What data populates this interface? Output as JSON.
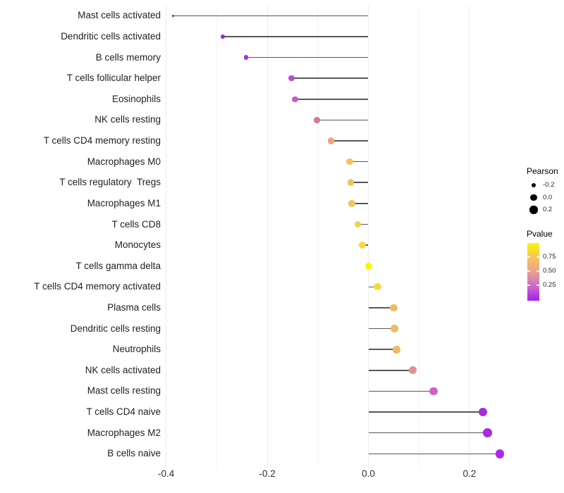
{
  "chart_data": {
    "type": "scatter",
    "subtype": "lollipop",
    "title": "",
    "xlabel": "",
    "ylabel": "",
    "xlim": [
      -0.45,
      0.29
    ],
    "x_ticks_major": [
      -0.4,
      -0.2,
      0.0,
      0.2
    ],
    "x_tick_labels": [
      "-0.4",
      "-0.2",
      "0.0",
      "0.2"
    ],
    "x_ticks_minor": [
      -0.3,
      -0.1,
      0.1
    ],
    "grid": "vertical gridlines only, light grey, every 0.1",
    "baseline_x": 0.0,
    "categories": [
      "Mast cells activated",
      "Dendritic cells activated",
      "B cells memory",
      "T cells follicular helper",
      "Eosinophils",
      "NK cells resting",
      "T cells CD4 memory resting",
      "Macrophages M0",
      "T cells regulatory  Tregs",
      "Macrophages M1",
      "T cells CD8",
      "Monocytes",
      "T cells gamma delta",
      "T cells CD4 memory activated",
      "Plasma cells",
      "Dendritic cells resting",
      "Neutrophils",
      "NK cells activated",
      "Mast cells resting",
      "T cells CD4 naive",
      "Macrophages M2",
      "B cells naive"
    ],
    "series": [
      {
        "name": "Pearson",
        "values": [
          -0.387,
          -0.288,
          -0.242,
          -0.152,
          -0.145,
          -0.102,
          -0.074,
          -0.037,
          -0.035,
          -0.033,
          -0.021,
          -0.012,
          0.001,
          0.018,
          0.05,
          0.052,
          0.056,
          0.088,
          0.129,
          0.227,
          0.236,
          0.26
        ]
      }
    ],
    "pvalues_estimated": [
      0.03,
      0.07,
      0.1,
      0.27,
      0.3,
      0.44,
      0.57,
      0.7,
      0.7,
      0.71,
      0.76,
      0.8,
      0.97,
      0.81,
      0.66,
      0.66,
      0.65,
      0.5,
      0.28,
      0.1,
      0.1,
      0.08
    ],
    "point_colors": [
      "#8A1BC2",
      "#9926DC",
      "#A52DE7",
      "#B94FD2",
      "#C35BCD",
      "#DA739D",
      "#EFA183",
      "#EFC45F",
      "#EFC45E",
      "#F0C65B",
      "#F2D14A",
      "#F5DA40",
      "#FBF604",
      "#F4DC3E",
      "#F0B966",
      "#F0B965",
      "#F0B862",
      "#E28E96",
      "#CE63C6",
      "#A62BDF",
      "#A72BE2",
      "#AB29E9"
    ],
    "stem_color": "#404040",
    "legend_position": "right"
  },
  "legend": {
    "size": {
      "title": "Pearson",
      "items": [
        {
          "label": "-0.2",
          "value": -0.2
        },
        {
          "label": "0.0",
          "value": 0.0
        },
        {
          "label": "0.2",
          "value": 0.2
        }
      ],
      "dot_color": "#000000"
    },
    "color": {
      "title": "Pvalue",
      "range": [
        0,
        1
      ],
      "ticks": [
        {
          "label": "0.75",
          "value": 0.75
        },
        {
          "label": "0.50",
          "value": 0.5
        },
        {
          "label": "0.25",
          "value": 0.25
        }
      ],
      "gradient_top_to_bottom": [
        "#F9F606",
        "#F2C55F",
        "#EBA092",
        "#CB6AC8",
        "#A31FF0"
      ]
    }
  }
}
